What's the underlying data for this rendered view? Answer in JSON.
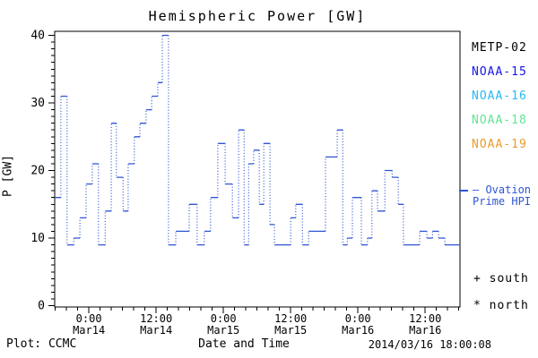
{
  "chart": {
    "title": "Hemispheric Power [GW]",
    "ylabel": "P [GW]",
    "xlabel": "Date and Time",
    "footer_left": "Plot: CCMC",
    "footer_right": "2014/03/16 18:00:08"
  },
  "legend": {
    "satellites": [
      {
        "label": "METP-02",
        "color": "#000000"
      },
      {
        "label": "NOAA-15",
        "color": "#1515e6"
      },
      {
        "label": "NOAA-16",
        "color": "#27b8f2"
      },
      {
        "label": "NOAA-18",
        "color": "#63e394"
      },
      {
        "label": "NOAA-19",
        "color": "#eb9b2d"
      }
    ],
    "line_legend": {
      "line1": "— Ovation",
      "line2": "Prime HPI",
      "color": "#2f55d4"
    },
    "south_marker": "+ south",
    "north_marker": "* north"
  },
  "chart_data": {
    "type": "line",
    "subtype": "step-histogram",
    "title": "Hemispheric Power [GW]",
    "xlabel": "Date and Time",
    "ylabel": "P [GW]",
    "line_color": "#2f55d4",
    "x_unit": "hours since 2014-03-13 18:00 UT",
    "xlim": [
      0,
      72.3
    ],
    "ylim": [
      0,
      40
    ],
    "y_major_ticks": [
      0,
      10,
      20,
      30,
      40
    ],
    "y_minor_step": 1,
    "x_minor_step": 2,
    "x_major_ticks": [
      {
        "t": 6.1,
        "time": "0:00",
        "date": "Mar14"
      },
      {
        "t": 18.1,
        "time": "12:00",
        "date": "Mar14"
      },
      {
        "t": 30.1,
        "time": "0:00",
        "date": "Mar15"
      },
      {
        "t": 42.1,
        "time": "12:00",
        "date": "Mar15"
      },
      {
        "t": 54.1,
        "time": "0:00",
        "date": "Mar16"
      },
      {
        "t": 66.1,
        "time": "12:00",
        "date": "Mar16"
      }
    ],
    "steps": [
      [
        0,
        16
      ],
      [
        1.1,
        31
      ],
      [
        2.2,
        9
      ],
      [
        3.4,
        10
      ],
      [
        4.5,
        13
      ],
      [
        5.6,
        18
      ],
      [
        6.7,
        21
      ],
      [
        7.8,
        9
      ],
      [
        9,
        14
      ],
      [
        10.1,
        27
      ],
      [
        11,
        19
      ],
      [
        12.2,
        14
      ],
      [
        13.1,
        21
      ],
      [
        14.2,
        25
      ],
      [
        15.2,
        27
      ],
      [
        16.3,
        29
      ],
      [
        17.3,
        31
      ],
      [
        18.4,
        33
      ],
      [
        19.2,
        40
      ],
      [
        20.3,
        9
      ],
      [
        21.6,
        11
      ],
      [
        24,
        15
      ],
      [
        25.4,
        9
      ],
      [
        26.7,
        11
      ],
      [
        27.8,
        16
      ],
      [
        29.1,
        24
      ],
      [
        30.4,
        18
      ],
      [
        31.7,
        13
      ],
      [
        32.8,
        26
      ],
      [
        33.8,
        9
      ],
      [
        34.6,
        21
      ],
      [
        35.5,
        23
      ],
      [
        36.5,
        15
      ],
      [
        37.3,
        24
      ],
      [
        38.4,
        12
      ],
      [
        39.2,
        9
      ],
      [
        42.1,
        13
      ],
      [
        43,
        15
      ],
      [
        44.2,
        9
      ],
      [
        45.3,
        11
      ],
      [
        48.3,
        22
      ],
      [
        50.4,
        26
      ],
      [
        51.4,
        9
      ],
      [
        52.2,
        10
      ],
      [
        53.1,
        16
      ],
      [
        54.7,
        9
      ],
      [
        55.8,
        10
      ],
      [
        56.6,
        17
      ],
      [
        57.6,
        14
      ],
      [
        58.9,
        20
      ],
      [
        60.2,
        19
      ],
      [
        61.3,
        15
      ],
      [
        62.2,
        9
      ],
      [
        65.1,
        11
      ],
      [
        66.4,
        10
      ],
      [
        67.4,
        11
      ],
      [
        68.5,
        10
      ],
      [
        69.6,
        9
      ]
    ]
  }
}
